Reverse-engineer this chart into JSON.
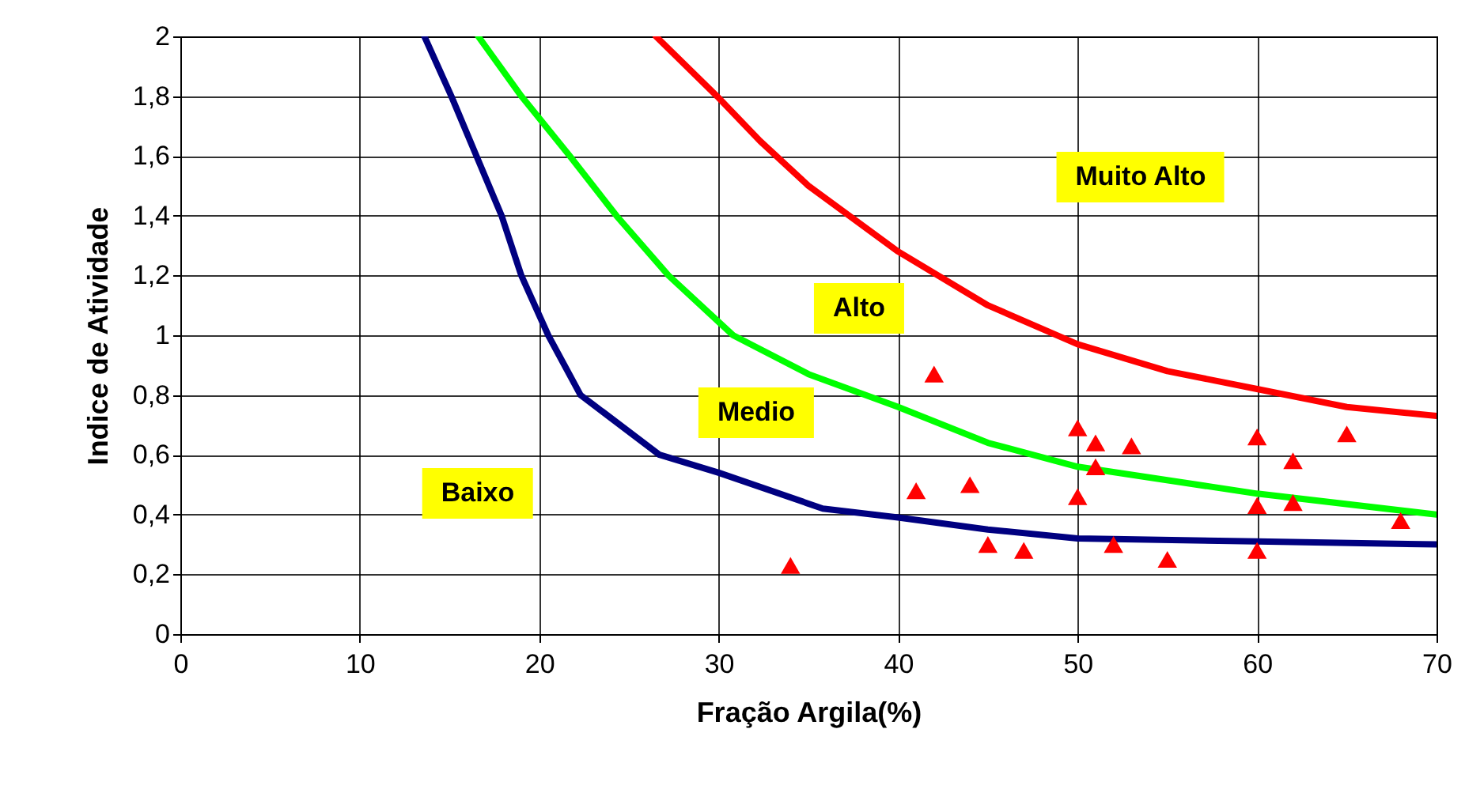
{
  "chart_data": {
    "type": "line",
    "xlabel": "Fração Argila(%)",
    "ylabel": "Indice de Atividade",
    "xlim": [
      0,
      70
    ],
    "xticks": [
      0,
      10,
      20,
      30,
      40,
      50,
      60,
      70
    ],
    "ylim": [
      0,
      2
    ],
    "yticks": [
      0,
      {
        "value": 0.2,
        "label": "0,2"
      },
      {
        "value": 0.4,
        "label": "0,4"
      },
      {
        "value": 0.6,
        "label": "0,6"
      },
      {
        "value": 0.8,
        "label": "0,8"
      },
      1,
      {
        "value": 1.2,
        "label": "1,2"
      },
      {
        "value": 1.4,
        "label": "1,4"
      },
      {
        "value": 1.6,
        "label": "1,6"
      },
      {
        "value": 1.8,
        "label": "1,8"
      },
      2
    ],
    "grid": true,
    "legend": false,
    "series": [
      {
        "color": "#000080",
        "marker": "none",
        "x": [
          13.6,
          15.1,
          16.5,
          17.9,
          19.0,
          20.5,
          22.3,
          26.7,
          30,
          35.8,
          40,
          45,
          50,
          60,
          70
        ],
        "values": [
          2,
          1.8,
          1.6,
          1.4,
          1.2,
          1.0,
          0.8,
          0.6,
          0.54,
          0.42,
          0.39,
          0.35,
          0.32,
          0.31,
          0.3
        ]
      },
      {
        "color": "#00ff00",
        "marker": "none",
        "x": [
          16.6,
          19.0,
          21.7,
          24.3,
          27.2,
          30.8,
          35,
          40,
          45,
          50,
          60,
          70
        ],
        "values": [
          2,
          1.8,
          1.6,
          1.4,
          1.2,
          1.0,
          0.87,
          0.76,
          0.64,
          0.56,
          0.47,
          0.4
        ]
      },
      {
        "color": "#ff0000",
        "marker": "none",
        "x": [
          26.5,
          29.9,
          32.3,
          35,
          40,
          45,
          50,
          55,
          60,
          65,
          70
        ],
        "values": [
          2,
          1.8,
          1.65,
          1.5,
          1.28,
          1.1,
          0.97,
          0.88,
          0.82,
          0.76,
          0.73
        ]
      },
      {
        "type": "scatter",
        "color": "#ff0000",
        "marker": "triangle",
        "x": [
          34,
          41,
          42,
          44,
          45,
          47,
          50,
          50,
          51,
          51,
          52,
          53,
          55,
          60,
          60,
          60,
          62,
          62,
          65,
          68
        ],
        "values": [
          0.23,
          0.48,
          0.87,
          0.5,
          0.3,
          0.28,
          0.69,
          0.46,
          0.64,
          0.56,
          0.3,
          0.63,
          0.25,
          0.66,
          0.43,
          0.28,
          0.58,
          0.44,
          0.67,
          0.38
        ]
      }
    ],
    "annotations": [
      "Muito Alto",
      "Alto",
      "Medio",
      "Baixo"
    ]
  }
}
